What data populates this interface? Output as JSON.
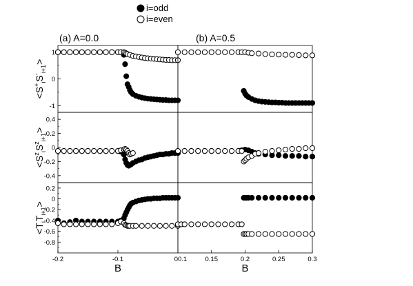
{
  "legend": {
    "odd_label": "i=odd",
    "even_label": "i=even"
  },
  "colors": {
    "odd": "#000000",
    "even": "#ffffff",
    "stroke": "#000000"
  },
  "chart_data": [
    {
      "type": "scatter",
      "panel": "top-left",
      "title": "(a) A=0.0",
      "ylabel": [
        "<S",
        "+",
        "i",
        "S",
        "-",
        "i+1",
        ">"
      ],
      "xlim": [
        -0.2,
        0
      ],
      "ylim": [
        -1.25,
        1.25
      ],
      "yticks": [
        -1,
        0,
        1
      ],
      "series": [
        {
          "name": "i=odd",
          "fill": "odd",
          "x": [
            -0.2,
            -0.19,
            -0.18,
            -0.17,
            -0.16,
            -0.15,
            -0.14,
            -0.13,
            -0.12,
            -0.11,
            -0.1,
            -0.095,
            -0.09,
            -0.088,
            -0.086,
            -0.084,
            -0.082,
            -0.08,
            -0.078,
            -0.075,
            -0.07,
            -0.065,
            -0.06,
            -0.055,
            -0.05,
            -0.045,
            -0.04,
            -0.035,
            -0.03,
            -0.025,
            -0.02,
            -0.015,
            -0.01,
            -0.005,
            0
          ],
          "y": [
            1,
            1,
            1,
            1,
            1,
            1,
            1,
            1,
            1,
            1,
            1,
            1,
            0.9,
            0.55,
            0.1,
            -0.2,
            -0.3,
            -0.42,
            -0.5,
            -0.57,
            -0.63,
            -0.67,
            -0.7,
            -0.72,
            -0.74,
            -0.75,
            -0.76,
            -0.77,
            -0.78,
            -0.79,
            -0.79,
            -0.8,
            -0.8,
            -0.8,
            -0.8
          ]
        },
        {
          "name": "i=even",
          "fill": "even",
          "x": [
            -0.2,
            -0.19,
            -0.18,
            -0.17,
            -0.16,
            -0.15,
            -0.14,
            -0.13,
            -0.12,
            -0.11,
            -0.1,
            -0.095,
            -0.09,
            -0.088,
            -0.086,
            -0.084,
            -0.08,
            -0.075,
            -0.07,
            -0.065,
            -0.06,
            -0.055,
            -0.05,
            -0.045,
            -0.04,
            -0.035,
            -0.03,
            -0.025,
            -0.02,
            -0.015,
            -0.01,
            -0.005,
            0
          ],
          "y": [
            1,
            1,
            1,
            1,
            1,
            1,
            1,
            1,
            1,
            1,
            1,
            1,
            1,
            0.98,
            0.95,
            0.93,
            0.9,
            0.86,
            0.84,
            0.82,
            0.8,
            0.78,
            0.77,
            0.76,
            0.75,
            0.74,
            0.73,
            0.72,
            0.71,
            0.71,
            0.7,
            0.7,
            0.7
          ]
        }
      ]
    },
    {
      "type": "scatter",
      "panel": "top-right",
      "title": "(b) A=0.5",
      "xlim": [
        0.1,
        0.3
      ],
      "ylim": [
        -1.25,
        1.25
      ],
      "series": [
        {
          "name": "i=odd",
          "fill": "odd",
          "x": [
            0.198,
            0.2,
            0.202,
            0.205,
            0.21,
            0.215,
            0.22,
            0.225,
            0.23,
            0.235,
            0.24,
            0.245,
            0.25,
            0.255,
            0.26,
            0.265,
            0.27,
            0.275,
            0.28,
            0.285,
            0.29,
            0.295,
            0.3
          ],
          "y": [
            -0.45,
            -0.55,
            -0.62,
            -0.68,
            -0.75,
            -0.8,
            -0.83,
            -0.85,
            -0.86,
            -0.87,
            -0.88,
            -0.88,
            -0.89,
            -0.89,
            -0.9,
            -0.9,
            -0.9,
            -0.9,
            -0.9,
            -0.9,
            -0.9,
            -0.9,
            -0.9
          ]
        },
        {
          "name": "i=even",
          "fill": "even",
          "x": [
            0.1,
            0.11,
            0.12,
            0.13,
            0.14,
            0.15,
            0.16,
            0.17,
            0.18,
            0.19,
            0.195,
            0.2,
            0.205,
            0.21,
            0.22,
            0.23,
            0.24,
            0.25,
            0.26,
            0.27,
            0.28,
            0.29,
            0.3
          ],
          "y": [
            1,
            1,
            1,
            1,
            1,
            1,
            1,
            1,
            1,
            1,
            1,
            1,
            0.98,
            0.96,
            0.95,
            0.93,
            0.92,
            0.91,
            0.9,
            0.9,
            0.89,
            0.88,
            0.88
          ]
        }
      ]
    },
    {
      "type": "scatter",
      "panel": "middle-left",
      "ylabel": [
        "<S",
        "z",
        "i",
        "S",
        "z",
        "i+1",
        ">"
      ],
      "xlim": [
        -0.2,
        0
      ],
      "ylim": [
        -0.5,
        0.5
      ],
      "yticks": [
        -0.4,
        -0.2,
        0,
        0.2,
        0.4
      ],
      "series": [
        {
          "name": "i=odd",
          "fill": "odd",
          "x": [
            -0.2,
            -0.19,
            -0.18,
            -0.17,
            -0.16,
            -0.15,
            -0.14,
            -0.13,
            -0.12,
            -0.11,
            -0.1,
            -0.095,
            -0.09,
            -0.088,
            -0.086,
            -0.084,
            -0.082,
            -0.08,
            -0.078,
            -0.075,
            -0.07,
            -0.065,
            -0.06,
            -0.055,
            -0.05,
            -0.045,
            -0.04,
            -0.035,
            -0.03,
            -0.025,
            -0.02,
            -0.015,
            -0.01,
            -0.005,
            0
          ],
          "y": [
            -0.05,
            -0.05,
            -0.05,
            -0.05,
            -0.05,
            -0.05,
            -0.05,
            -0.05,
            -0.05,
            -0.05,
            -0.05,
            -0.06,
            -0.1,
            -0.17,
            -0.22,
            -0.25,
            -0.26,
            -0.25,
            -0.24,
            -0.22,
            -0.2,
            -0.18,
            -0.17,
            -0.15,
            -0.14,
            -0.13,
            -0.12,
            -0.11,
            -0.1,
            -0.1,
            -0.09,
            -0.09,
            -0.08,
            -0.08,
            -0.08
          ]
        },
        {
          "name": "i=even",
          "fill": "even",
          "x": [
            -0.2,
            -0.19,
            -0.18,
            -0.17,
            -0.16,
            -0.15,
            -0.14,
            -0.13,
            -0.12,
            -0.11,
            -0.1,
            -0.095,
            -0.09,
            -0.088,
            -0.086,
            -0.084,
            -0.082,
            -0.08,
            -0.078,
            -0.075
          ],
          "y": [
            -0.05,
            -0.05,
            -0.05,
            -0.05,
            -0.05,
            -0.05,
            -0.05,
            -0.05,
            -0.05,
            -0.05,
            -0.05,
            -0.04,
            -0.03,
            -0.02,
            -0.03,
            -0.05,
            -0.08,
            -0.1,
            -0.09,
            -0.08
          ]
        }
      ]
    },
    {
      "type": "scatter",
      "panel": "middle-right",
      "xlim": [
        0.1,
        0.3
      ],
      "ylim": [
        -0.5,
        0.5
      ],
      "series": [
        {
          "name": "i=odd",
          "fill": "odd",
          "x": [
            0.1,
            0.11,
            0.12,
            0.13,
            0.14,
            0.15,
            0.16,
            0.17,
            0.18,
            0.19,
            0.195,
            0.2,
            0.205,
            0.21,
            0.215,
            0.22,
            0.23,
            0.24,
            0.25,
            0.26,
            0.27,
            0.28,
            0.29,
            0.3
          ],
          "y": [
            -0.05,
            -0.05,
            -0.05,
            -0.05,
            -0.05,
            -0.05,
            -0.05,
            -0.05,
            -0.05,
            -0.05,
            -0.04,
            -0.03,
            -0.04,
            -0.06,
            -0.08,
            -0.09,
            -0.1,
            -0.11,
            -0.11,
            -0.12,
            -0.12,
            -0.12,
            -0.13,
            -0.13
          ]
        },
        {
          "name": "i=even",
          "fill": "even",
          "x": [
            0.1,
            0.11,
            0.12,
            0.13,
            0.14,
            0.15,
            0.16,
            0.17,
            0.18,
            0.19,
            0.195,
            0.198,
            0.2,
            0.202,
            0.205,
            0.21,
            0.215,
            0.22,
            0.23,
            0.24,
            0.25,
            0.26,
            0.27,
            0.28,
            0.29,
            0.3
          ],
          "y": [
            -0.05,
            -0.05,
            -0.05,
            -0.05,
            -0.05,
            -0.05,
            -0.05,
            -0.05,
            -0.05,
            -0.05,
            -0.05,
            -0.2,
            -0.18,
            -0.16,
            -0.14,
            -0.12,
            -0.09,
            -0.08,
            -0.06,
            -0.05,
            -0.04,
            -0.03,
            -0.02,
            -0.02,
            -0.01,
            -0.01
          ]
        }
      ]
    },
    {
      "type": "scatter",
      "panel": "bottom-left",
      "ylabel": [
        "<T",
        "",
        "i",
        "T",
        "",
        "i+1",
        ">"
      ],
      "xlabel": "B",
      "xlim": [
        -0.2,
        0
      ],
      "ylim": [
        -1.0,
        0.3
      ],
      "yticks": [
        -0.8,
        -0.6,
        -0.4,
        -0.2,
        0,
        0.2
      ],
      "xticks": [
        -0.2,
        -0.1,
        0
      ],
      "xtick_labels": [
        "-0.2",
        "-0.1",
        "0"
      ],
      "series": [
        {
          "name": "i=odd",
          "fill": "odd",
          "x": [
            -0.2,
            -0.19,
            -0.18,
            -0.17,
            -0.16,
            -0.15,
            -0.14,
            -0.13,
            -0.12,
            -0.11,
            -0.1,
            -0.095,
            -0.09,
            -0.088,
            -0.086,
            -0.084,
            -0.082,
            -0.08,
            -0.078,
            -0.075,
            -0.07,
            -0.065,
            -0.06,
            -0.055,
            -0.05,
            -0.045,
            -0.04,
            -0.035,
            -0.03,
            -0.025,
            -0.02,
            -0.015,
            -0.01,
            -0.005,
            0
          ],
          "y": [
            -0.4,
            -0.45,
            -0.43,
            -0.4,
            -0.42,
            -0.42,
            -0.42,
            -0.42,
            -0.42,
            -0.42,
            -0.42,
            -0.4,
            -0.36,
            -0.3,
            -0.25,
            -0.2,
            -0.16,
            -0.12,
            -0.09,
            -0.07,
            -0.05,
            -0.03,
            -0.02,
            -0.01,
            0,
            0,
            0.01,
            0.01,
            0.01,
            0.02,
            0.02,
            0.02,
            0.02,
            0.02,
            0.02
          ]
        },
        {
          "name": "i=even",
          "fill": "even",
          "x": [
            -0.2,
            -0.19,
            -0.18,
            -0.17,
            -0.16,
            -0.15,
            -0.14,
            -0.13,
            -0.12,
            -0.11,
            -0.1,
            -0.095,
            -0.09,
            -0.088,
            -0.086,
            -0.084,
            -0.082,
            -0.08,
            -0.075,
            -0.07,
            -0.06,
            -0.05,
            -0.04,
            -0.03,
            -0.02,
            -0.01,
            0
          ],
          "y": [
            -0.45,
            -0.47,
            -0.47,
            -0.47,
            -0.47,
            -0.47,
            -0.47,
            -0.47,
            -0.47,
            -0.47,
            -0.45,
            -0.42,
            -0.45,
            -0.48,
            -0.49,
            -0.5,
            -0.5,
            -0.5,
            -0.5,
            -0.5,
            -0.5,
            -0.5,
            -0.5,
            -0.5,
            -0.5,
            -0.5,
            -0.5
          ]
        }
      ]
    },
    {
      "type": "scatter",
      "panel": "bottom-right",
      "xlabel": "B",
      "xlim": [
        0.1,
        0.3
      ],
      "ylim": [
        -1.0,
        0.3
      ],
      "xticks": [
        0.1,
        0.15,
        0.2,
        0.25,
        0.3
      ],
      "xtick_labels": [
        "0.1",
        "0.15",
        "0.2",
        "0.25",
        "0.3"
      ],
      "series": [
        {
          "name": "i=odd",
          "fill": "odd",
          "x": [
            0.198,
            0.2,
            0.202,
            0.205,
            0.21,
            0.22,
            0.23,
            0.24,
            0.25,
            0.26,
            0.27,
            0.28,
            0.29,
            0.3
          ],
          "y": [
            0.02,
            0.02,
            0.02,
            0.02,
            0.02,
            0.02,
            0.02,
            0.02,
            0.02,
            0.02,
            0.02,
            0.02,
            0.02,
            0.02
          ]
        },
        {
          "name": "i=even",
          "fill": "even",
          "x": [
            0.1,
            0.105,
            0.11,
            0.12,
            0.13,
            0.14,
            0.15,
            0.16,
            0.17,
            0.18,
            0.19,
            0.195,
            0.198,
            0.2,
            0.202,
            0.205,
            0.21,
            0.22,
            0.23,
            0.24,
            0.25,
            0.26,
            0.27,
            0.28,
            0.29,
            0.3
          ],
          "y": [
            -0.47,
            -0.47,
            -0.47,
            -0.47,
            -0.47,
            -0.47,
            -0.47,
            -0.47,
            -0.47,
            -0.47,
            -0.47,
            -0.47,
            -0.65,
            -0.65,
            -0.65,
            -0.65,
            -0.65,
            -0.65,
            -0.65,
            -0.65,
            -0.65,
            -0.65,
            -0.65,
            -0.65,
            -0.65,
            -0.65
          ]
        }
      ]
    }
  ]
}
